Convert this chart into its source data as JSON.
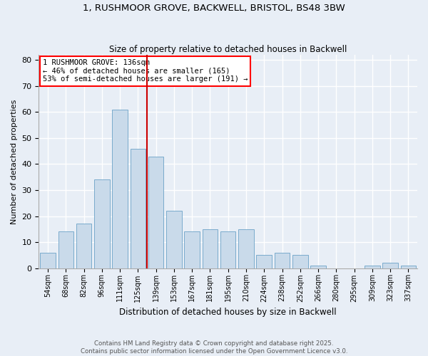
{
  "title": "1, RUSHMOOR GROVE, BACKWELL, BRISTOL, BS48 3BW",
  "subtitle": "Size of property relative to detached houses in Backwell",
  "xlabel": "Distribution of detached houses by size in Backwell",
  "ylabel": "Number of detached properties",
  "bar_color": "#c9daea",
  "bar_edge_color": "#7aabcc",
  "background_color": "#e8eef6",
  "grid_color": "#ffffff",
  "categories": [
    "54sqm",
    "68sqm",
    "82sqm",
    "96sqm",
    "111sqm",
    "125sqm",
    "139sqm",
    "153sqm",
    "167sqm",
    "181sqm",
    "195sqm",
    "210sqm",
    "224sqm",
    "238sqm",
    "252sqm",
    "266sqm",
    "280sqm",
    "295sqm",
    "309sqm",
    "323sqm",
    "337sqm"
  ],
  "values": [
    6,
    14,
    17,
    34,
    61,
    46,
    43,
    22,
    14,
    15,
    14,
    15,
    5,
    6,
    5,
    1,
    0,
    0,
    1,
    2,
    1
  ],
  "vline_x_index": 6,
  "vline_color": "#cc0000",
  "annotation_title": "1 RUSHMOOR GROVE: 136sqm",
  "annotation_line1": "← 46% of detached houses are smaller (165)",
  "annotation_line2": "53% of semi-detached houses are larger (191) →",
  "ylim": [
    0,
    82
  ],
  "yticks": [
    0,
    10,
    20,
    30,
    40,
    50,
    60,
    70,
    80
  ],
  "footer_line1": "Contains HM Land Registry data © Crown copyright and database right 2025.",
  "footer_line2": "Contains public sector information licensed under the Open Government Licence v3.0."
}
